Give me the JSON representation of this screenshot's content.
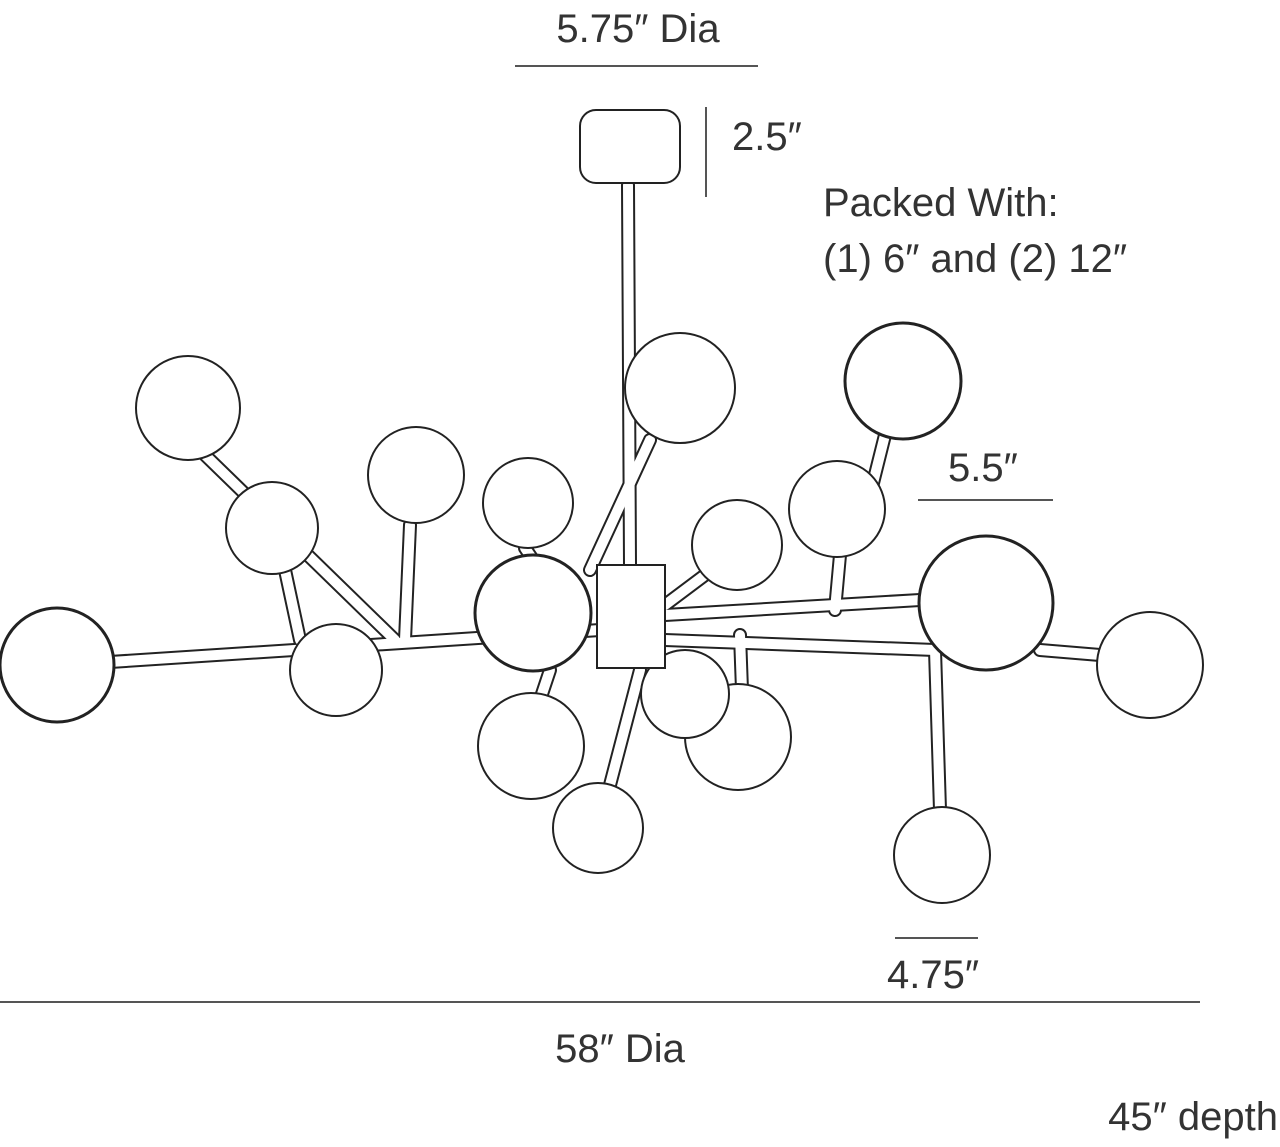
{
  "dimensions": {
    "canopy_diameter": "5.75″ Dia",
    "canopy_height": "2.5″",
    "large_globe": "5.5″",
    "small_globe": "4.75″",
    "overall_diameter": "58″ Dia",
    "depth": "45″ depth"
  },
  "packed_with": {
    "title": "Packed With:",
    "rods": "(1) 6″ and (2) 12″"
  }
}
